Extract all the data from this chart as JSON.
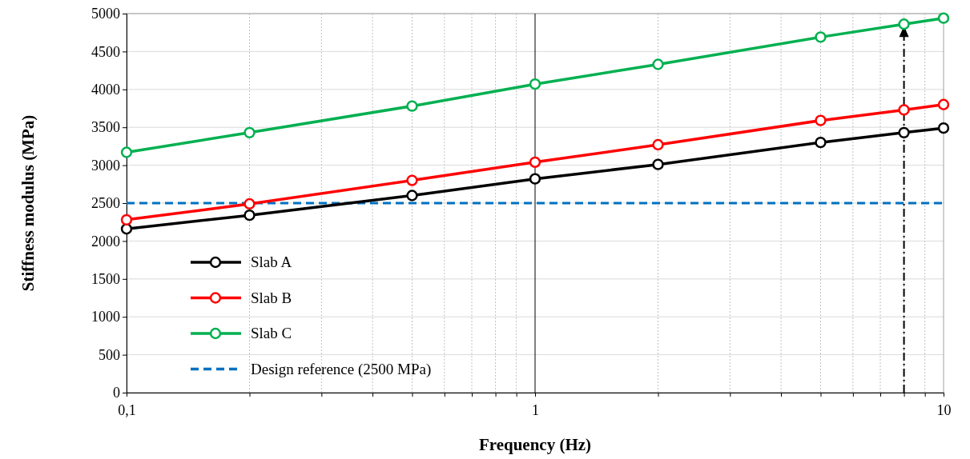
{
  "chart_data": {
    "type": "line",
    "xlabel": "Frequency (Hz)",
    "ylabel": "Stiffness modulus (MPa)",
    "log": "x",
    "x": [
      0.1,
      0.2,
      0.5,
      1,
      2,
      5,
      8,
      10
    ],
    "series": [
      {
        "name": "Slab A",
        "color": "#000000",
        "values": [
          2160,
          2340,
          2600,
          2820,
          3010,
          3300,
          3430,
          3490
        ]
      },
      {
        "name": "Slab B",
        "color": "#ff0000",
        "values": [
          2280,
          2490,
          2800,
          3040,
          3270,
          3590,
          3730,
          3800
        ]
      },
      {
        "name": "Slab C",
        "color": "#00b050",
        "values": [
          3170,
          3430,
          3780,
          4070,
          4330,
          4690,
          4860,
          4940
        ]
      }
    ],
    "ref_lines": [
      {
        "axis": "y",
        "value": 2500,
        "label": "Design reference (2500 MPa)",
        "color": "#0070c0",
        "line_style": "dashed"
      },
      {
        "axis": "x",
        "value": 1,
        "color": "#000000",
        "line_style": "solid"
      },
      {
        "axis": "x",
        "value": 8,
        "color": "#000000",
        "line_style": "dashdot"
      }
    ],
    "xlim": [
      0.1,
      10
    ],
    "xticks": [
      {
        "value": 0.1,
        "label": "0,1"
      },
      {
        "value": 0.2,
        "label": null
      },
      {
        "value": 0.3,
        "label": null
      },
      {
        "value": 0.4,
        "label": null
      },
      {
        "value": 0.5,
        "label": null
      },
      {
        "value": 0.6,
        "label": null
      },
      {
        "value": 0.7,
        "label": null
      },
      {
        "value": 0.8,
        "label": null
      },
      {
        "value": 0.9,
        "label": null
      },
      1,
      {
        "value": 2,
        "label": null
      },
      {
        "value": 3,
        "label": null
      },
      {
        "value": 4,
        "label": null
      },
      {
        "value": 5,
        "label": null
      },
      {
        "value": 6,
        "label": null
      },
      {
        "value": 7,
        "label": null
      },
      {
        "value": 8,
        "label": null
      },
      {
        "value": 9,
        "label": null
      },
      10
    ],
    "ylim": [
      0,
      5000
    ],
    "yticks": [
      0,
      500,
      1000,
      1500,
      2000,
      2500,
      3000,
      3500,
      4000,
      4500,
      5000
    ],
    "grid": true,
    "legend": "bottom left",
    "marker": "circle",
    "line_style": "solid"
  }
}
